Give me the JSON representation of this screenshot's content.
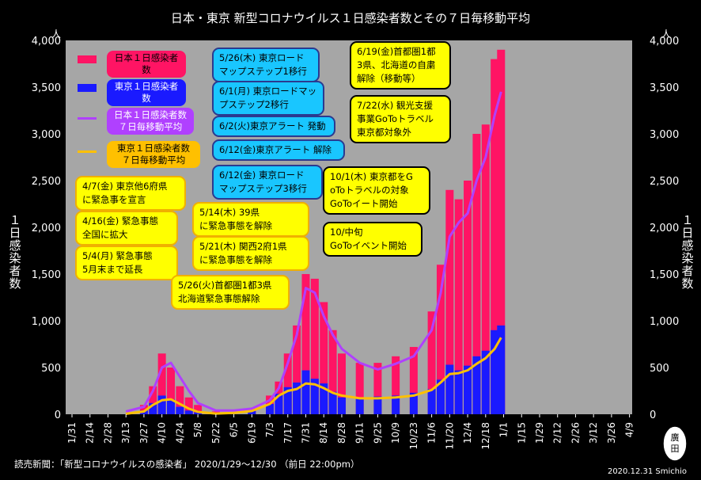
{
  "chart_data": {
    "type": "bar",
    "title": "日本・東京 新型コロナウイルス１日感染者数とその７日毎移動平均",
    "ylabel": "１日感染者数",
    "ylabel_right": "１日感染者数",
    "unit_left": "人",
    "unit_right": "人",
    "ylim": [
      0,
      4000
    ],
    "yticks": [
      "0",
      "500",
      "1,000",
      "1,500",
      "2,000",
      "2,500",
      "3,000",
      "3,500",
      "4,000"
    ],
    "xticks": [
      "1/31",
      "2/14",
      "2/28",
      "3/13",
      "3/27",
      "4/10",
      "4/24",
      "5/8",
      "5/22",
      "6/5",
      "6/19",
      "7/3",
      "7/17",
      "7/31",
      "8/14",
      "8/28",
      "9/11",
      "9/25",
      "10/9",
      "10/23",
      "11/6",
      "11/20",
      "12/4",
      "12/18",
      "1/1",
      "1/15",
      "1/29",
      "2/12",
      "2/26",
      "3/12",
      "3/26",
      "4/9"
    ],
    "grid": false,
    "legend_position": "top-left",
    "series": [
      {
        "name": "日本１日感染者数",
        "kind": "bar",
        "color": "#ff1464",
        "x": [
          "3/27",
          "4/3",
          "4/10",
          "4/17",
          "4/24",
          "5/1",
          "5/8",
          "5/22",
          "6/19",
          "7/3",
          "7/10",
          "7/17",
          "7/24",
          "7/31",
          "8/7",
          "8/14",
          "8/21",
          "8/28",
          "9/11",
          "9/25",
          "10/9",
          "10/23",
          "11/6",
          "11/13",
          "11/20",
          "11/27",
          "12/4",
          "12/11",
          "12/18",
          "12/25",
          "12/30"
        ],
        "values": [
          100,
          300,
          650,
          500,
          300,
          180,
          100,
          30,
          60,
          200,
          350,
          650,
          950,
          1500,
          1450,
          1200,
          900,
          650,
          550,
          550,
          620,
          720,
          1100,
          1600,
          2400,
          2300,
          2500,
          3000,
          3100,
          3800,
          3900
        ]
      },
      {
        "name": "東京１日感染者数",
        "kind": "bar",
        "color": "#1a1aff",
        "x": [
          "3/27",
          "4/3",
          "4/10",
          "4/17",
          "4/24",
          "5/1",
          "5/8",
          "5/22",
          "6/19",
          "7/3",
          "7/10",
          "7/17",
          "7/24",
          "7/31",
          "8/7",
          "8/14",
          "8/21",
          "8/28",
          "9/11",
          "9/25",
          "10/9",
          "10/23",
          "11/6",
          "11/13",
          "11/20",
          "11/27",
          "12/4",
          "12/11",
          "12/18",
          "12/25",
          "12/30"
        ],
        "values": [
          40,
          120,
          200,
          160,
          80,
          40,
          20,
          5,
          35,
          110,
          220,
          290,
          340,
          470,
          380,
          330,
          240,
          180,
          180,
          190,
          200,
          230,
          270,
          370,
          530,
          470,
          520,
          620,
          680,
          900,
          950
        ]
      },
      {
        "name": "日本１日感染者数 ７日毎移動平均",
        "kind": "line",
        "color": "#b040ff",
        "x": [
          "3/13",
          "3/27",
          "4/3",
          "4/10",
          "4/17",
          "4/24",
          "5/1",
          "5/8",
          "5/22",
          "6/5",
          "6/19",
          "7/3",
          "7/10",
          "7/17",
          "7/24",
          "7/31",
          "8/7",
          "8/14",
          "8/21",
          "8/28",
          "9/11",
          "9/25",
          "10/9",
          "10/23",
          "11/6",
          "11/13",
          "11/20",
          "11/27",
          "12/4",
          "12/11",
          "12/18",
          "12/25",
          "12/30"
        ],
        "values": [
          30,
          80,
          250,
          500,
          550,
          400,
          250,
          120,
          40,
          40,
          60,
          150,
          280,
          550,
          850,
          1350,
          1300,
          1050,
          850,
          700,
          550,
          480,
          540,
          620,
          900,
          1300,
          1900,
          2050,
          2150,
          2500,
          2750,
          3200,
          3450
        ]
      },
      {
        "name": "東京１日感染者数 ７日毎移動平均",
        "kind": "line",
        "color": "#ffc000",
        "x": [
          "3/13",
          "3/27",
          "4/3",
          "4/10",
          "4/17",
          "4/24",
          "5/1",
          "5/8",
          "5/22",
          "6/5",
          "6/19",
          "7/3",
          "7/10",
          "7/17",
          "7/24",
          "7/31",
          "8/7",
          "8/14",
          "8/21",
          "8/28",
          "9/11",
          "9/25",
          "10/9",
          "10/23",
          "11/6",
          "11/13",
          "11/20",
          "11/27",
          "12/4",
          "12/11",
          "12/18",
          "12/25",
          "12/30"
        ],
        "values": [
          5,
          30,
          100,
          150,
          160,
          110,
          60,
          25,
          8,
          15,
          35,
          110,
          200,
          250,
          270,
          330,
          320,
          280,
          230,
          200,
          170,
          170,
          180,
          200,
          260,
          340,
          430,
          440,
          470,
          540,
          600,
          700,
          820
        ]
      }
    ]
  },
  "legend": [
    {
      "label": "日本１日感染者数",
      "color": "#ff1464",
      "text_color": "#000"
    },
    {
      "label": "東京１日感染者数",
      "color": "#1a1aff",
      "text_color": "#fff"
    },
    {
      "label": "日本１日感染者数\n７日毎移動平均",
      "color": "#b040ff",
      "text_color": "#fff"
    },
    {
      "label": "東京１日感染者数\n７日毎移動平均",
      "color": "#ffc000",
      "text_color": "#000"
    }
  ],
  "annotations": [
    {
      "text": "4/7(金) 東京他6府県\nに緊急事を宣言",
      "style": "yellow"
    },
    {
      "text": "4/16(金) 緊急事態\n全国に拡大",
      "style": "yellow"
    },
    {
      "text": "5/4(月) 緊急事態\n5月末まで延長",
      "style": "yellow"
    },
    {
      "text": "5/26(火)首都圏1都3県\n北海道緊急事態解除",
      "style": "yellow"
    },
    {
      "text": "5/14(木) 39県\nに緊急事態を解除",
      "style": "yellow"
    },
    {
      "text": "5/21(木) 関西2府1県\nに緊急事態を解除",
      "style": "yellow"
    },
    {
      "text": "5/26(木) 東京ロード\nマップステップ1移行",
      "style": "cyan"
    },
    {
      "text": "6/1(月) 東京ロードマッ\nプステップ2移行",
      "style": "cyan"
    },
    {
      "text": "6/2(火)東京アラート 発動",
      "style": "cyan"
    },
    {
      "text": "6/12(金)東京アラート 解除",
      "style": "cyan"
    },
    {
      "text": "6/12(金) 東京ロード\nマップステップ3移行",
      "style": "cyan"
    },
    {
      "text": "6/19(金)首都圏1都\n3県、北海道の自粛\n解除（移動等）",
      "style": "yellowblk"
    },
    {
      "text": "7/22(水) 観光支援\n事業GoToトラベル\n東京都対象外",
      "style": "yellowblk"
    },
    {
      "text": "10/1(木) 東京都をG\noToトラベルの対象\nGoToイート開始",
      "style": "yellowblk"
    },
    {
      "text": "10/中旬\nGoToイベント開始",
      "style": "yellowblk"
    }
  ],
  "footer": {
    "source": "読売新聞：「新型コロナウイルスの感染者」 2020/1/29〜12/30 （前日 22:00pm）",
    "date": "2020.12.31  Smichio",
    "stamp": "廣田"
  }
}
